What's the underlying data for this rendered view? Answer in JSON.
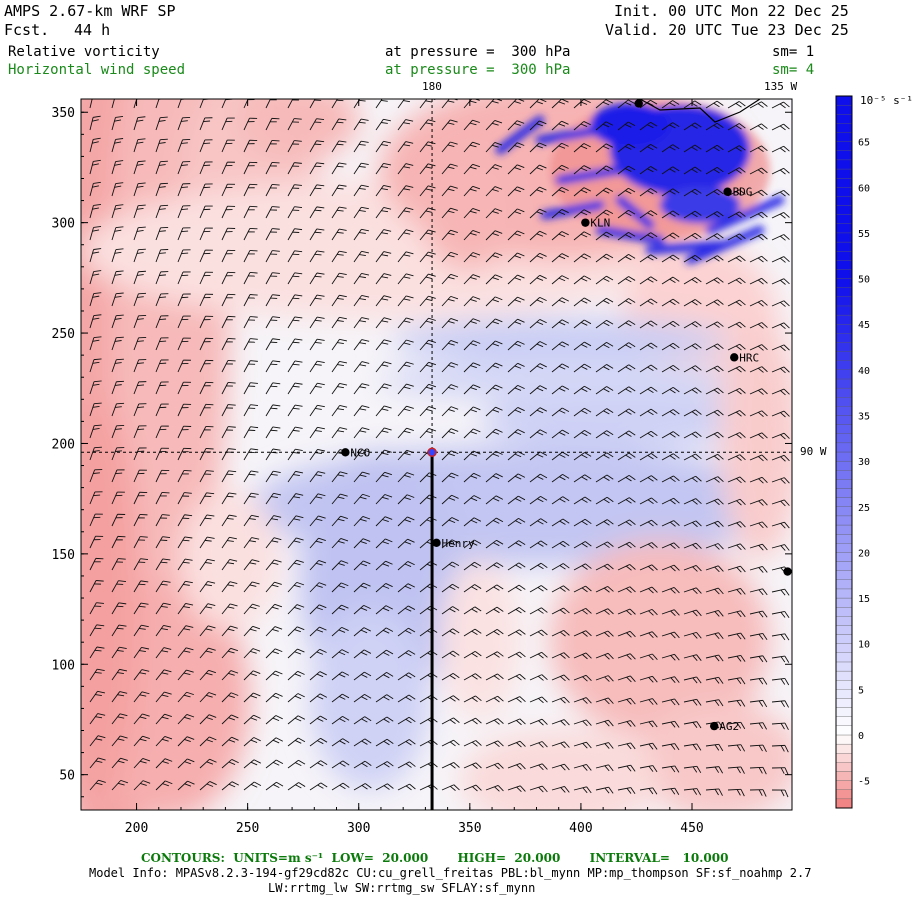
{
  "header": {
    "model": "AMPS 2.67-km WRF SP",
    "fcst_label": "Fcst.",
    "fcst_value": "44 h",
    "init": "Init. 00 UTC Mon 22 Dec 25",
    "valid": "Valid. 20 UTC Tue 23 Dec 25",
    "field1": "Relative vorticity",
    "field1_level": "at pressure =  300 hPa",
    "field1_sm": "sm= 1",
    "field2": "Horizontal wind speed",
    "field2_level": "at pressure =  300 hPa",
    "field2_sm": "sm= 4"
  },
  "map_labels": {
    "lon_180": "180",
    "lon_135w": "135 W",
    "lon_90w": "90 W"
  },
  "colorbar": {
    "unit": "10⁻⁵ s⁻¹",
    "ticks": [
      "65",
      "60",
      "55",
      "50",
      "45",
      "40",
      "35",
      "30",
      "25",
      "20",
      "15",
      "10",
      "5",
      "0",
      "-5"
    ],
    "colors": {
      "max_blue": "#1010e0",
      "zero": "#ffffff",
      "min_red": "#f08080"
    }
  },
  "stations": [
    {
      "name": "NCO"
    },
    {
      "name": "Henry"
    },
    {
      "name": "KLN"
    },
    {
      "name": "BDG"
    },
    {
      "name": "HRC"
    },
    {
      "name": "AG2"
    }
  ],
  "chart_data": {
    "type": "heatmap",
    "title": "Relative vorticity / Horizontal wind speed at 300 hPa",
    "x_ticks": [
      200,
      250,
      300,
      350,
      400,
      450
    ],
    "y_ticks": [
      50,
      100,
      150,
      200,
      250,
      300,
      350
    ],
    "xlim": [
      175,
      495
    ],
    "ylim": [
      34,
      356
    ],
    "vorticity_range": [
      -8,
      70
    ],
    "stations": [
      {
        "name": "NCO",
        "x": 294,
        "y": 196
      },
      {
        "name": "Henry",
        "x": 335,
        "y": 155
      },
      {
        "name": "KLN",
        "x": 402,
        "y": 300
      },
      {
        "name": "BDG",
        "x": 466,
        "y": 314
      },
      {
        "name": "HRC",
        "x": 469,
        "y": 239
      },
      {
        "name": "AG2",
        "x": 460,
        "y": 72
      },
      {
        "name": "",
        "x": 493,
        "y": 142
      },
      {
        "name": "",
        "x": 426,
        "y": 354
      }
    ],
    "meridian_180_x": 333,
    "parallel_y": 196,
    "section_line": {
      "x": 333,
      "y_from": 34,
      "y_to": 196
    }
  },
  "footer": {
    "contours": "CONTOURS:  UNITS=m s⁻¹  LOW=  20.000       HIGH=  20.000       INTERVAL=   10.000",
    "model_info": "Model Info: MPASv8.2.3-194-gf29cd82c CU:cu_grell_freitas PBL:bl_mynn MP:mp_thompson SF:sf_noahmp 2.7",
    "model_info2": "LW:rrtmg_lw SW:rrtmg_sw SFLAY:sf_mynn"
  }
}
